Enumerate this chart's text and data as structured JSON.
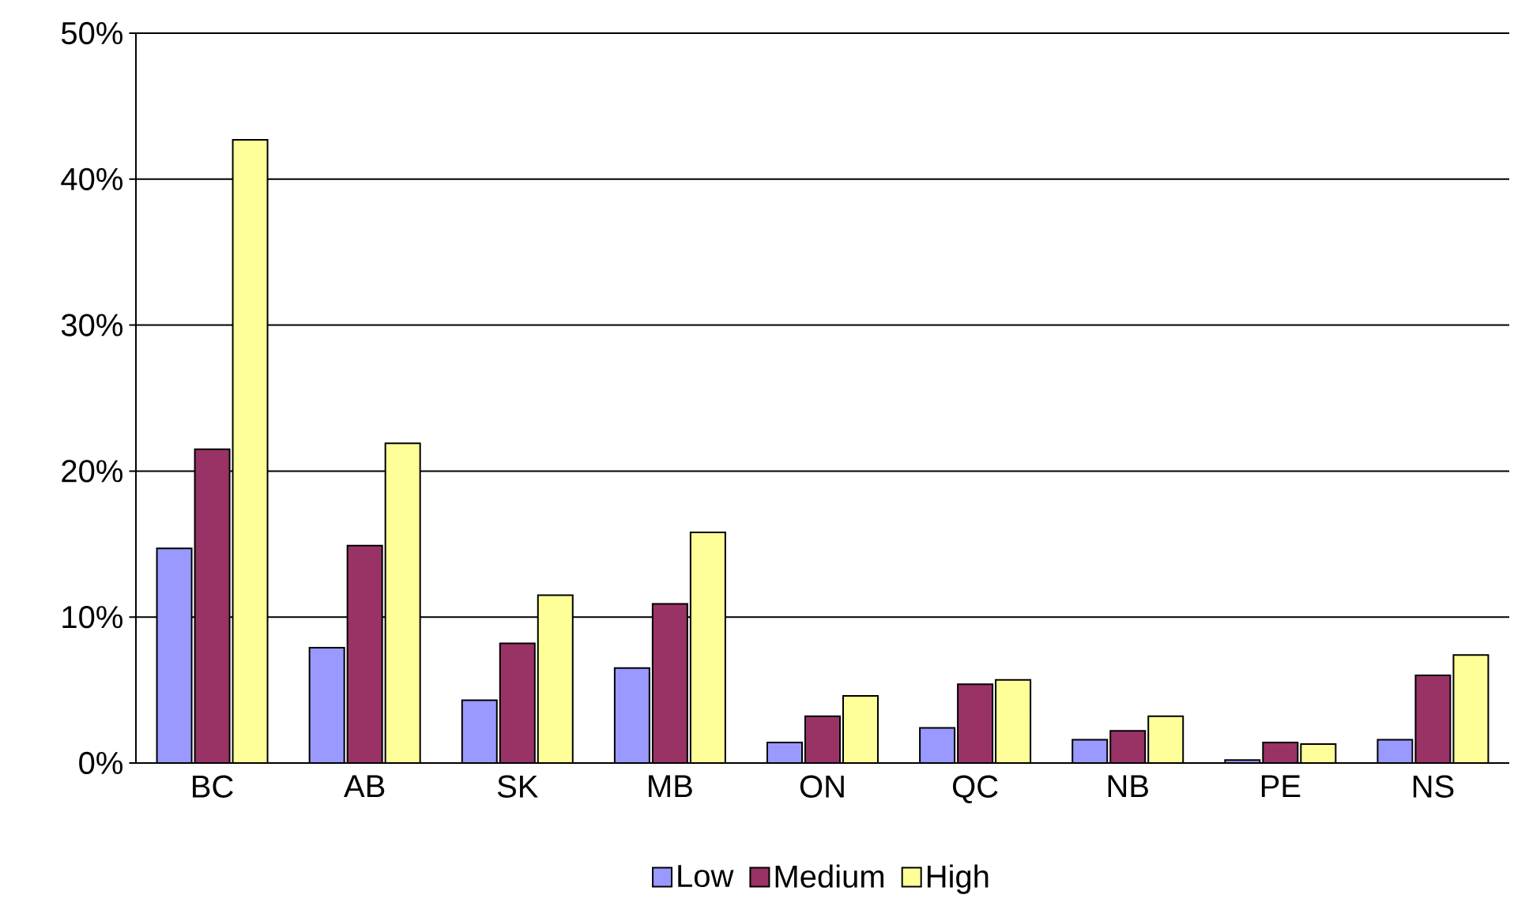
{
  "chart_data": {
    "type": "bar",
    "categories": [
      "BC",
      "AB",
      "SK",
      "MB",
      "ON",
      "QC",
      "NB",
      "PE",
      "NS"
    ],
    "series": [
      {
        "name": "Low",
        "color": "#9999ff",
        "values": [
          14.7,
          7.9,
          4.3,
          6.5,
          1.4,
          2.4,
          1.6,
          0.2,
          1.6
        ]
      },
      {
        "name": "Medium",
        "color": "#993366",
        "values": [
          21.5,
          14.9,
          8.2,
          10.9,
          3.2,
          5.4,
          2.2,
          1.4,
          6.0
        ]
      },
      {
        "name": "High",
        "color": "#ffff99",
        "values": [
          42.7,
          21.9,
          11.5,
          15.8,
          4.6,
          5.7,
          3.2,
          1.3,
          7.4
        ]
      }
    ],
    "ylim": [
      0,
      50
    ],
    "yticks": [
      {
        "value": 0,
        "label": "0%"
      },
      {
        "value": 10,
        "label": "10%"
      },
      {
        "value": 20,
        "label": "20%"
      },
      {
        "value": 30,
        "label": "30%"
      },
      {
        "value": 40,
        "label": "40%"
      },
      {
        "value": 50,
        "label": "50%"
      }
    ],
    "grid": "y",
    "legend": "bottom"
  }
}
